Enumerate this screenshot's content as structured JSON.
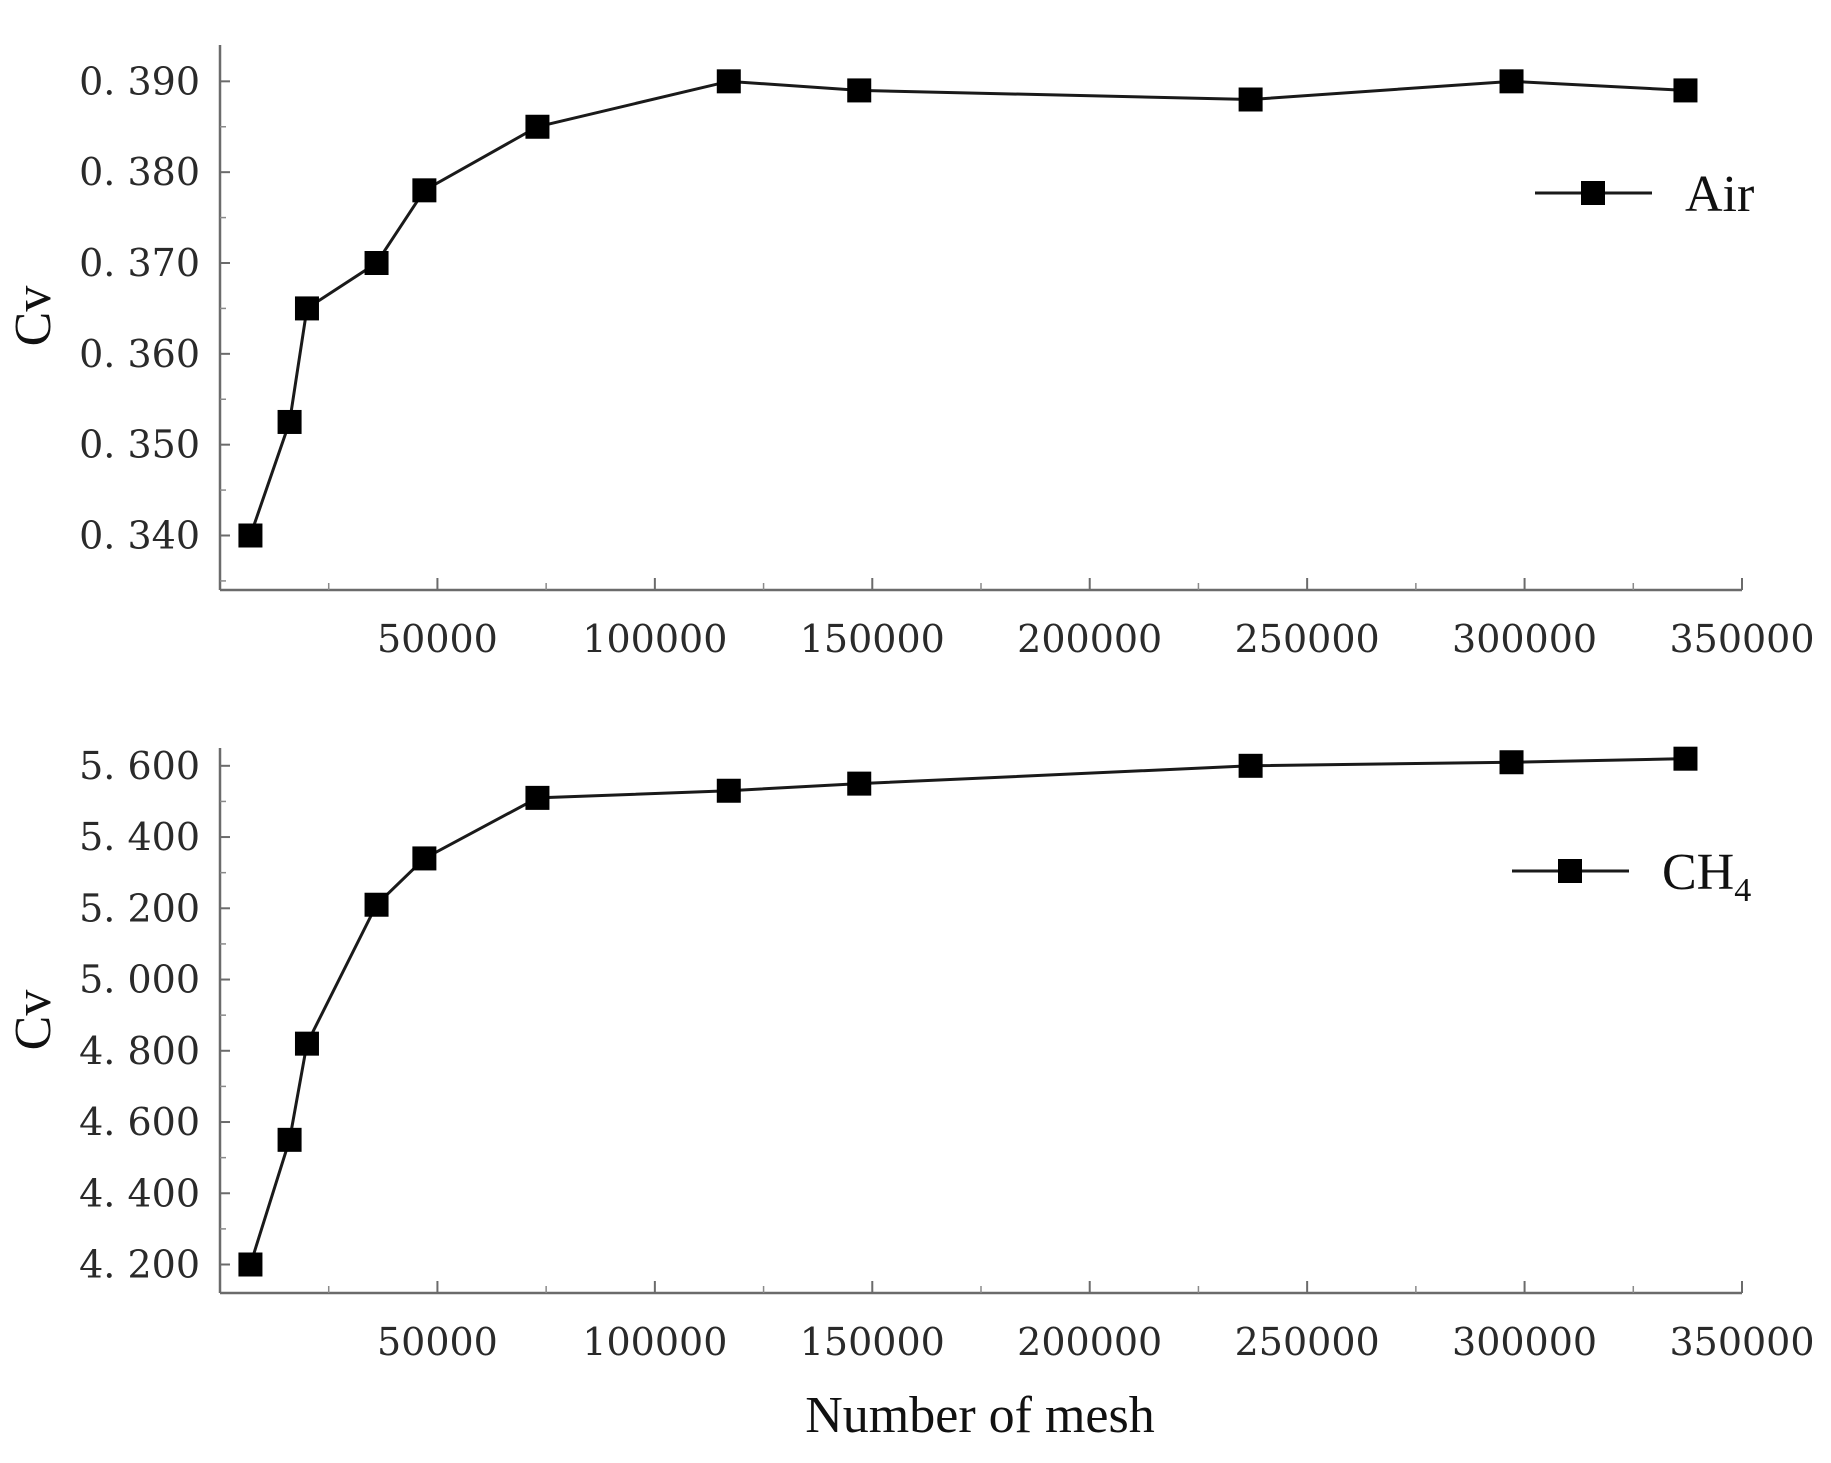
{
  "chart_data": [
    {
      "type": "line",
      "xlabel": "",
      "ylabel": "Cv",
      "xlim": [
        0,
        350000
      ],
      "ylim": [
        0.334,
        0.394
      ],
      "xticks": [
        50000,
        100000,
        150000,
        200000,
        250000,
        300000,
        350000
      ],
      "yticks": [
        0.34,
        0.35,
        0.36,
        0.37,
        0.38,
        0.39
      ],
      "ytick_labels": [
        "0. 340",
        "0. 350",
        "0. 360",
        "0. 370",
        "0. 380",
        "0. 390"
      ],
      "grid": false,
      "legend_position": "upper-right",
      "series": [
        {
          "name": "Air",
          "name_subscript": "",
          "marker": "square",
          "color": "#000000",
          "x": [
            7000,
            16000,
            20000,
            36000,
            47000,
            73000,
            117000,
            147000,
            237000,
            297000,
            337000
          ],
          "y": [
            0.34,
            0.3525,
            0.365,
            0.37,
            0.378,
            0.385,
            0.39,
            0.389,
            0.388,
            0.39,
            0.389
          ]
        }
      ]
    },
    {
      "type": "line",
      "xlabel": "Number of mesh",
      "ylabel": "Cv",
      "xlim": [
        0,
        350000
      ],
      "ylim": [
        4.12,
        5.65
      ],
      "xticks": [
        50000,
        100000,
        150000,
        200000,
        250000,
        300000,
        350000
      ],
      "yticks": [
        4.2,
        4.4,
        4.6,
        4.8,
        5.0,
        5.2,
        5.4,
        5.6
      ],
      "ytick_labels": [
        "4. 200",
        "4. 400",
        "4. 600",
        "4. 800",
        "5. 000",
        "5. 200",
        "5. 400",
        "5. 600"
      ],
      "grid": false,
      "legend_position": "upper-right",
      "series": [
        {
          "name": "CH",
          "name_subscript": "4",
          "marker": "square",
          "color": "#000000",
          "x": [
            7000,
            16000,
            20000,
            36000,
            47000,
            73000,
            117000,
            147000,
            237000,
            297000,
            337000
          ],
          "y": [
            4.2,
            4.55,
            4.82,
            5.21,
            5.34,
            5.51,
            5.53,
            5.55,
            5.6,
            5.61,
            5.62
          ]
        }
      ]
    }
  ]
}
